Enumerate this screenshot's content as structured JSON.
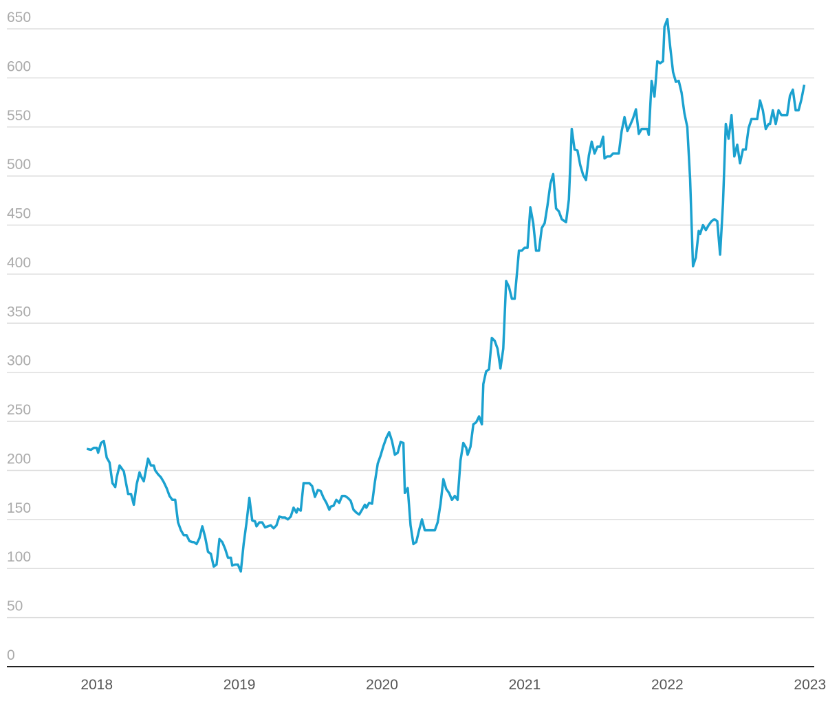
{
  "chart_data": {
    "type": "line",
    "x": [
      2017.93,
      2017.96,
      2017.98,
      2018.0,
      2018.01,
      2018.03,
      2018.05,
      2018.07,
      2018.09,
      2018.11,
      2018.13,
      2018.14,
      2018.16,
      2018.19,
      2018.2,
      2018.22,
      2018.24,
      2018.26,
      2018.28,
      2018.3,
      2018.31,
      2018.33,
      2018.36,
      2018.38,
      2018.4,
      2018.41,
      2018.43,
      2018.45,
      2018.47,
      2018.49,
      2018.51,
      2018.53,
      2018.55,
      2018.57,
      2018.59,
      2018.61,
      2018.63,
      2018.65,
      2018.67,
      2018.68,
      2018.7,
      2018.72,
      2018.74,
      2018.76,
      2018.78,
      2018.8,
      2018.82,
      2018.84,
      2018.86,
      2018.88,
      2018.9,
      2018.92,
      2018.94,
      2018.95,
      2018.97,
      2018.99,
      2019.01,
      2019.03,
      2019.05,
      2019.07,
      2019.09,
      2019.11,
      2019.12,
      2019.14,
      2019.16,
      2019.18,
      2019.2,
      2019.22,
      2019.24,
      2019.26,
      2019.28,
      2019.3,
      2019.32,
      2019.34,
      2019.36,
      2019.38,
      2019.4,
      2019.41,
      2019.43,
      2019.45,
      2019.47,
      2019.49,
      2019.51,
      2019.53,
      2019.55,
      2019.57,
      2019.59,
      2019.61,
      2019.63,
      2019.64,
      2019.66,
      2019.68,
      2019.7,
      2019.72,
      2019.74,
      2019.76,
      2019.78,
      2019.8,
      2019.82,
      2019.84,
      2019.86,
      2019.88,
      2019.89,
      2019.91,
      2019.93,
      2019.95,
      2019.97,
      2019.99,
      2020.01,
      2020.03,
      2020.05,
      2020.07,
      2020.09,
      2020.11,
      2020.13,
      2020.15,
      2020.16,
      2020.18,
      2020.2,
      2020.22,
      2020.24,
      2020.26,
      2020.28,
      2020.3,
      2020.31,
      2020.33,
      2020.35,
      2020.37,
      2020.39,
      2020.41,
      2020.43,
      2020.45,
      2020.47,
      2020.49,
      2020.51,
      2020.53,
      2020.55,
      2020.57,
      2020.59,
      2020.6,
      2020.62,
      2020.64,
      2020.66,
      2020.68,
      2020.7,
      2020.71,
      2020.73,
      2020.75,
      2020.77,
      2020.79,
      2020.81,
      2020.83,
      2020.85,
      2020.87,
      2020.89,
      2020.91,
      2020.93,
      2020.95,
      2020.96,
      2020.98,
      2021.0,
      2021.02,
      2021.04,
      2021.06,
      2021.08,
      2021.1,
      2021.12,
      2021.14,
      2021.16,
      2021.18,
      2021.2,
      2021.22,
      2021.24,
      2021.26,
      2021.27,
      2021.29,
      2021.31,
      2021.33,
      2021.35,
      2021.37,
      2021.39,
      2021.41,
      2021.43,
      2021.45,
      2021.47,
      2021.49,
      2021.51,
      2021.53,
      2021.55,
      2021.56,
      2021.58,
      2021.6,
      2021.62,
      2021.64,
      2021.66,
      2021.68,
      2021.7,
      2021.72,
      2021.74,
      2021.76,
      2021.78,
      2021.8,
      2021.82,
      2021.84,
      2021.86,
      2021.87,
      2021.89,
      2021.91,
      2021.93,
      2021.95,
      2021.97,
      2021.98,
      2022.0,
      2022.02,
      2022.04,
      2022.06,
      2022.08,
      2022.1,
      2022.12,
      2022.14,
      2022.16,
      2022.18,
      2022.2,
      2022.22,
      2022.23,
      2022.25,
      2022.27,
      2022.29,
      2022.31,
      2022.33,
      2022.35,
      2022.37,
      2022.39,
      2022.41,
      2022.43,
      2022.45,
      2022.47,
      2022.49,
      2022.51,
      2022.53,
      2022.55,
      2022.57,
      2022.59,
      2022.61,
      2022.63,
      2022.65,
      2022.67,
      2022.69,
      2022.71,
      2022.72,
      2022.74,
      2022.76,
      2022.78,
      2022.8,
      2022.82,
      2022.84,
      2022.86,
      2022.88,
      2022.9,
      2022.92,
      2022.94,
      2022.96
    ],
    "series": [
      {
        "color": "#1ba1cf",
        "values": [
          222,
          221,
          223,
          223,
          218,
          228,
          230,
          213,
          208,
          187,
          183,
          193,
          205,
          199,
          191,
          176,
          176,
          165,
          186,
          198,
          194,
          189,
          212,
          205,
          205,
          200,
          196,
          193,
          188,
          182,
          174,
          170,
          170,
          147,
          139,
          134,
          134,
          128,
          127,
          127,
          125,
          131,
          143,
          132,
          117,
          115,
          102,
          104,
          130,
          127,
          120,
          111,
          111,
          103,
          104,
          104,
          97,
          125,
          147,
          172,
          149,
          148,
          143,
          147,
          147,
          142,
          143,
          144,
          141,
          144,
          153,
          152,
          152,
          150,
          153,
          162,
          157,
          161,
          159,
          187,
          187,
          187,
          184,
          173,
          180,
          179,
          172,
          167,
          160,
          163,
          164,
          170,
          167,
          174,
          174,
          172,
          169,
          160,
          157,
          155,
          160,
          165,
          162,
          167,
          166,
          188,
          207,
          215,
          225,
          233,
          239,
          230,
          216,
          218,
          229,
          228,
          177,
          182,
          144,
          125,
          127,
          139,
          150,
          139,
          139,
          139,
          139,
          139,
          147,
          166,
          191,
          181,
          177,
          170,
          174,
          170,
          210,
          228,
          223,
          216,
          224,
          247,
          249,
          255,
          247,
          288,
          301,
          303,
          335,
          332,
          324,
          304,
          324,
          393,
          387,
          375,
          375,
          408,
          424,
          424,
          427,
          427,
          468,
          452,
          424,
          424,
          447,
          452,
          470,
          492,
          502,
          467,
          464,
          456,
          455,
          453,
          476,
          548,
          527,
          526,
          511,
          501,
          496,
          521,
          535,
          523,
          530,
          530,
          540,
          518,
          520,
          520,
          523,
          523,
          523,
          546,
          560,
          546,
          552,
          559,
          568,
          543,
          548,
          548,
          548,
          542,
          597,
          581,
          617,
          615,
          617,
          652,
          660,
          632,
          606,
          596,
          597,
          585,
          564,
          550,
          497,
          408,
          417,
          444,
          441,
          450,
          445,
          450,
          454,
          456,
          454,
          420,
          472,
          553,
          538,
          562,
          520,
          532,
          513,
          527,
          527,
          549,
          558,
          558,
          558,
          577,
          567,
          548,
          553,
          553,
          567,
          553,
          567,
          562,
          562,
          562,
          582,
          588,
          567,
          567,
          578,
          593
        ]
      }
    ],
    "xlim": [
      2017.37,
      2023.03
    ],
    "xticks": [
      2018,
      2019,
      2020,
      2021,
      2022,
      2023
    ],
    "ylim": [
      0,
      650
    ],
    "yticks": [
      0,
      50,
      100,
      150,
      200,
      250,
      300,
      350,
      400,
      450,
      500,
      550,
      600,
      650
    ],
    "grid": true
  }
}
